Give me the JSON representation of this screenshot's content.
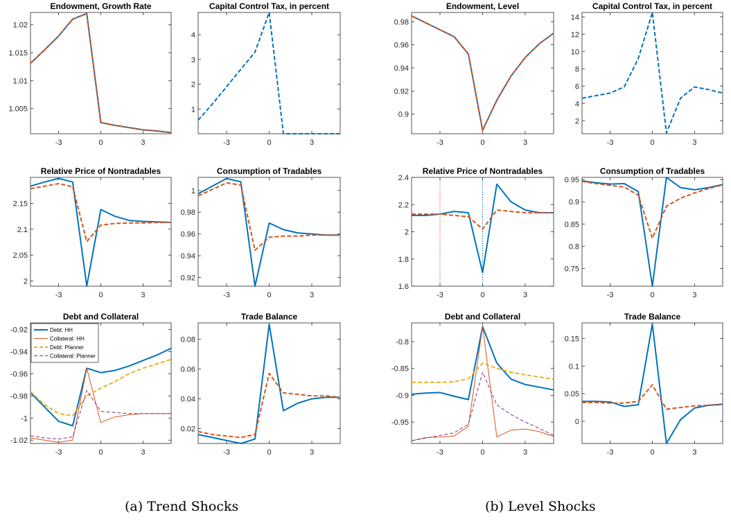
{
  "colors": {
    "hh": "#0072BD",
    "planner": "#D95319",
    "debt_planner": "#EDB120",
    "coll_planner": "#7E2F8E",
    "axis": "#262626"
  },
  "captions": {
    "a": "(a) Trend Shocks",
    "b": "(b) Level Shocks"
  },
  "chart_data": [
    {
      "id": "a1",
      "type": "line",
      "title": "Endowment, Growth Rate",
      "x": [
        -5,
        -4,
        -3,
        -2,
        -1,
        0,
        1,
        2,
        3,
        4,
        5
      ],
      "xlim": [
        -5,
        5
      ],
      "xticks": [
        -3,
        0,
        3
      ],
      "ylim": [
        1.0005,
        1.0222
      ],
      "yticks": [
        1.005,
        1.01,
        1.015,
        1.02
      ],
      "ytick_labels": [
        "1.005",
        "1.01",
        "1.015",
        "1.02"
      ],
      "series": [
        {
          "key": "hh",
          "values": [
            1.0131,
            1.0155,
            1.018,
            1.021,
            1.022,
            1.0025,
            1.002,
            1.0016,
            1.0012,
            1.001,
            1.0007
          ]
        },
        {
          "key": "planner",
          "dashed": true,
          "values": [
            1.0131,
            1.0155,
            1.018,
            1.021,
            1.022,
            1.0025,
            1.002,
            1.0016,
            1.0012,
            1.001,
            1.0007
          ]
        }
      ]
    },
    {
      "id": "a2",
      "type": "line",
      "title": "Capital Control Tax, in percent",
      "x": [
        -5,
        -4,
        -3,
        -2,
        -1,
        0,
        1,
        2,
        3,
        4,
        5
      ],
      "xlim": [
        -5,
        5
      ],
      "xticks": [
        -3,
        0,
        3
      ],
      "ylim": [
        0,
        4.9
      ],
      "yticks": [
        1,
        2,
        3,
        4
      ],
      "ytick_labels": [
        "1",
        "2",
        "3",
        "4"
      ],
      "series": [
        {
          "key": "hh",
          "dashed": true,
          "values": [
            0.55,
            1.2,
            1.9,
            2.6,
            3.3,
            4.9,
            0,
            0,
            0,
            0,
            0
          ]
        }
      ]
    },
    {
      "id": "a3",
      "type": "line",
      "title": "Relative Price of Nontradables",
      "x": [
        -5,
        -4,
        -3,
        -2,
        -1,
        0,
        1,
        2,
        3,
        4,
        5
      ],
      "xlim": [
        -5,
        5
      ],
      "xticks": [
        -3,
        0,
        3
      ],
      "ylim": [
        1.99,
        2.2
      ],
      "yticks": [
        2,
        2.05,
        2.1,
        2.15
      ],
      "ytick_labels": [
        "2",
        "2.05",
        "2.1",
        "2.15"
      ],
      "series": [
        {
          "key": "hh",
          "values": [
            2.183,
            2.191,
            2.198,
            2.191,
            1.99,
            2.138,
            2.125,
            2.117,
            2.115,
            2.114,
            2.113
          ]
        },
        {
          "key": "planner",
          "dashed": true,
          "values": [
            2.178,
            2.183,
            2.188,
            2.182,
            2.076,
            2.108,
            2.111,
            2.112,
            2.112,
            2.113,
            2.113
          ]
        }
      ]
    },
    {
      "id": "a4",
      "type": "line",
      "title": "Consumption of Tradables",
      "x": [
        -5,
        -4,
        -3,
        -2,
        -1,
        0,
        1,
        2,
        3,
        4,
        5
      ],
      "xlim": [
        -5,
        5
      ],
      "xticks": [
        -3,
        0,
        3
      ],
      "ylim": [
        0.912,
        1.012
      ],
      "yticks": [
        0.92,
        0.94,
        0.96,
        0.98,
        1
      ],
      "ytick_labels": [
        "0.92",
        "0.94",
        "0.96",
        "0.98",
        "1"
      ],
      "series": [
        {
          "key": "hh",
          "values": [
            0.997,
            1.004,
            1.011,
            1.008,
            0.912,
            0.97,
            0.964,
            0.961,
            0.96,
            0.959,
            0.959
          ]
        },
        {
          "key": "planner",
          "dashed": true,
          "values": [
            0.995,
            1.001,
            1.007,
            1.005,
            0.945,
            0.957,
            0.958,
            0.958,
            0.959,
            0.959,
            0.959
          ]
        }
      ]
    },
    {
      "id": "a5",
      "type": "line",
      "title": "Debt and Collateral",
      "x": [
        -5,
        -4,
        -3,
        -2,
        -1,
        0,
        1,
        2,
        3,
        4,
        5
      ],
      "xlim": [
        -5,
        5
      ],
      "xticks": [
        -3,
        0,
        3
      ],
      "ylim": [
        -1.023,
        -0.914
      ],
      "yticks": [
        -1.02,
        -1,
        -0.98,
        -0.96,
        -0.94,
        -0.92
      ],
      "ytick_labels": [
        "-1.02",
        "-1",
        "-0.98",
        "-0.96",
        "-0.94",
        "-0.92"
      ],
      "legend": [
        "Debt: HH",
        "Collateral: HH",
        "Debt: Planner",
        "Collateral: Planner"
      ],
      "series": [
        {
          "key": "hh",
          "values": [
            -0.977,
            -0.99,
            -1.003,
            -1.007,
            -0.955,
            -0.959,
            -0.957,
            -0.953,
            -0.948,
            -0.943,
            -0.937
          ]
        },
        {
          "key": "planner",
          "thin": true,
          "values": [
            -1.018,
            -1.02,
            -1.022,
            -1.02,
            -0.955,
            -1.004,
            -0.999,
            -0.997,
            -0.996,
            -0.996,
            -0.996
          ]
        },
        {
          "key": "debt_planner",
          "dashed": true,
          "values": [
            -0.976,
            -0.988,
            -0.996,
            -0.998,
            -0.98,
            -0.973,
            -0.967,
            -0.96,
            -0.955,
            -0.951,
            -0.947
          ]
        },
        {
          "key": "coll_planner",
          "dashed": true,
          "thin": true,
          "values": [
            -1.016,
            -1.018,
            -1.019,
            -1.017,
            -0.975,
            -0.994,
            -0.995,
            -0.996,
            -0.996,
            -0.996,
            -0.996
          ]
        }
      ]
    },
    {
      "id": "a6",
      "type": "line",
      "title": "Trade Balance",
      "x": [
        -5,
        -4,
        -3,
        -2,
        -1,
        0,
        1,
        2,
        3,
        4,
        5
      ],
      "xlim": [
        -5,
        5
      ],
      "xticks": [
        -3,
        0,
        3
      ],
      "ylim": [
        0.01,
        0.091
      ],
      "yticks": [
        0.02,
        0.04,
        0.06,
        0.08
      ],
      "ytick_labels": [
        "0.02",
        "0.04",
        "0.06",
        "0.08"
      ],
      "series": [
        {
          "key": "hh",
          "values": [
            0.016,
            0.014,
            0.012,
            0.01,
            0.013,
            0.09,
            0.032,
            0.037,
            0.04,
            0.041,
            0.041
          ]
        },
        {
          "key": "planner",
          "dashed": true,
          "values": [
            0.018,
            0.016,
            0.015,
            0.014,
            0.016,
            0.057,
            0.044,
            0.043,
            0.042,
            0.042,
            0.041
          ]
        }
      ]
    },
    {
      "id": "b1",
      "type": "line",
      "title": "Endowment, Level",
      "x": [
        -5,
        -4,
        -3,
        -2,
        -1,
        0,
        1,
        2,
        3,
        4,
        5
      ],
      "xlim": [
        -5,
        5
      ],
      "xticks": [
        -3,
        0,
        3
      ],
      "ylim": [
        0.883,
        0.988
      ],
      "yticks": [
        0.9,
        0.92,
        0.94,
        0.96,
        0.98
      ],
      "ytick_labels": [
        "0.9",
        "0.92",
        "0.94",
        "0.96",
        "0.98"
      ],
      "series": [
        {
          "key": "hh",
          "values": [
            0.985,
            0.979,
            0.973,
            0.967,
            0.952,
            0.886,
            0.912,
            0.933,
            0.949,
            0.961,
            0.97
          ]
        },
        {
          "key": "planner",
          "dashed": true,
          "values": [
            0.985,
            0.979,
            0.973,
            0.967,
            0.952,
            0.886,
            0.912,
            0.933,
            0.949,
            0.961,
            0.97
          ]
        }
      ]
    },
    {
      "id": "b2",
      "type": "line",
      "title": "Capital Control Tax, in percent",
      "x": [
        -5,
        -4,
        -3,
        -2,
        -1,
        0,
        1,
        2,
        3,
        4,
        5
      ],
      "xlim": [
        -5,
        5
      ],
      "xticks": [
        -3,
        0,
        3
      ],
      "ylim": [
        0.5,
        14.5
      ],
      "yticks": [
        2,
        4,
        6,
        8,
        10,
        12,
        14
      ],
      "ytick_labels": [
        "2",
        "4",
        "6",
        "8",
        "10",
        "12",
        "14"
      ],
      "series": [
        {
          "key": "hh",
          "dashed": true,
          "values": [
            4.6,
            4.9,
            5.2,
            5.9,
            9.2,
            14.5,
            0.6,
            4.6,
            5.9,
            5.6,
            5.2
          ]
        }
      ]
    },
    {
      "id": "b3",
      "type": "line",
      "title": "Relative Price of Nontradables",
      "x": [
        -5,
        -4,
        -3,
        -2,
        -1,
        0,
        1,
        2,
        3,
        4,
        5
      ],
      "xlim": [
        -5,
        5
      ],
      "xticks": [
        -3,
        0,
        3
      ],
      "ylim": [
        1.6,
        2.4
      ],
      "yticks": [
        1.6,
        1.8,
        2,
        2.2,
        2.4
      ],
      "ytick_labels": [
        "1.6",
        "1.8",
        "2",
        "2.2",
        "2.4"
      ],
      "vlines": [
        {
          "x": -3,
          "color": "#D95319"
        },
        {
          "x": 0,
          "color": "#0072BD"
        }
      ],
      "series": [
        {
          "key": "hh",
          "values": [
            2.12,
            2.12,
            2.13,
            2.15,
            2.14,
            1.7,
            2.35,
            2.22,
            2.16,
            2.14,
            2.14
          ]
        },
        {
          "key": "planner",
          "dashed": true,
          "values": [
            2.13,
            2.13,
            2.13,
            2.12,
            2.11,
            2.02,
            2.16,
            2.15,
            2.14,
            2.14,
            2.14
          ]
        }
      ]
    },
    {
      "id": "b4",
      "type": "line",
      "title": "Consumption of Tradables",
      "x": [
        -5,
        -4,
        -3,
        -2,
        -1,
        0,
        1,
        2,
        3,
        4,
        5
      ],
      "xlim": [
        -5,
        5
      ],
      "xticks": [
        -3,
        0,
        3
      ],
      "ylim": [
        0.71,
        0.955
      ],
      "yticks": [
        0.75,
        0.8,
        0.85,
        0.9,
        0.95
      ],
      "ytick_labels": [
        "0.75",
        "0.8",
        "0.85",
        "0.9",
        "0.95"
      ],
      "series": [
        {
          "key": "hh",
          "values": [
            0.947,
            0.943,
            0.94,
            0.941,
            0.923,
            0.71,
            0.955,
            0.932,
            0.927,
            0.932,
            0.939
          ]
        },
        {
          "key": "planner",
          "dashed": true,
          "values": [
            0.946,
            0.941,
            0.937,
            0.933,
            0.915,
            0.818,
            0.89,
            0.908,
            0.92,
            0.93,
            0.938
          ]
        }
      ]
    },
    {
      "id": "b5",
      "type": "line",
      "title": "Debt and Collateral",
      "x": [
        -5,
        -4,
        -3,
        -2,
        -1,
        0,
        1,
        2,
        3,
        4,
        5
      ],
      "xlim": [
        -5,
        5
      ],
      "xticks": [
        -3,
        0,
        3
      ],
      "ylim": [
        -0.99,
        -0.765
      ],
      "yticks": [
        -0.95,
        -0.9,
        -0.85,
        -0.8
      ],
      "ytick_labels": [
        "-0.95",
        "-0.9",
        "-0.85",
        "-0.8"
      ],
      "series": [
        {
          "key": "hh",
          "values": [
            -0.898,
            -0.896,
            -0.895,
            -0.902,
            -0.908,
            -0.772,
            -0.84,
            -0.87,
            -0.88,
            -0.885,
            -0.89
          ]
        },
        {
          "key": "planner",
          "thin": true,
          "values": [
            -0.985,
            -0.979,
            -0.978,
            -0.976,
            -0.958,
            -0.772,
            -0.978,
            -0.965,
            -0.963,
            -0.968,
            -0.977
          ]
        },
        {
          "key": "debt_planner",
          "dashed": true,
          "values": [
            -0.876,
            -0.876,
            -0.876,
            -0.875,
            -0.869,
            -0.84,
            -0.85,
            -0.857,
            -0.862,
            -0.866,
            -0.87
          ]
        },
        {
          "key": "coll_planner",
          "dashed": true,
          "thin": true,
          "values": [
            -0.985,
            -0.98,
            -0.975,
            -0.97,
            -0.954,
            -0.857,
            -0.918,
            -0.936,
            -0.95,
            -0.962,
            -0.975
          ]
        }
      ]
    },
    {
      "id": "b6",
      "type": "line",
      "title": "Trade Balance",
      "x": [
        -5,
        -4,
        -3,
        -2,
        -1,
        0,
        1,
        2,
        3,
        4,
        5
      ],
      "xlim": [
        -5,
        5
      ],
      "xticks": [
        -3,
        0,
        3
      ],
      "ylim": [
        -0.04,
        0.178
      ],
      "yticks": [
        0,
        0.05,
        0.1,
        0.15
      ],
      "ytick_labels": [
        "0",
        "0.05",
        "0.1",
        "0.15"
      ],
      "series": [
        {
          "key": "hh",
          "values": [
            0.036,
            0.036,
            0.035,
            0.027,
            0.03,
            0.176,
            -0.04,
            0.003,
            0.024,
            0.029,
            0.031
          ]
        },
        {
          "key": "planner",
          "dashed": true,
          "values": [
            0.034,
            0.034,
            0.033,
            0.033,
            0.036,
            0.066,
            0.022,
            0.025,
            0.028,
            0.029,
            0.03
          ]
        }
      ]
    }
  ]
}
